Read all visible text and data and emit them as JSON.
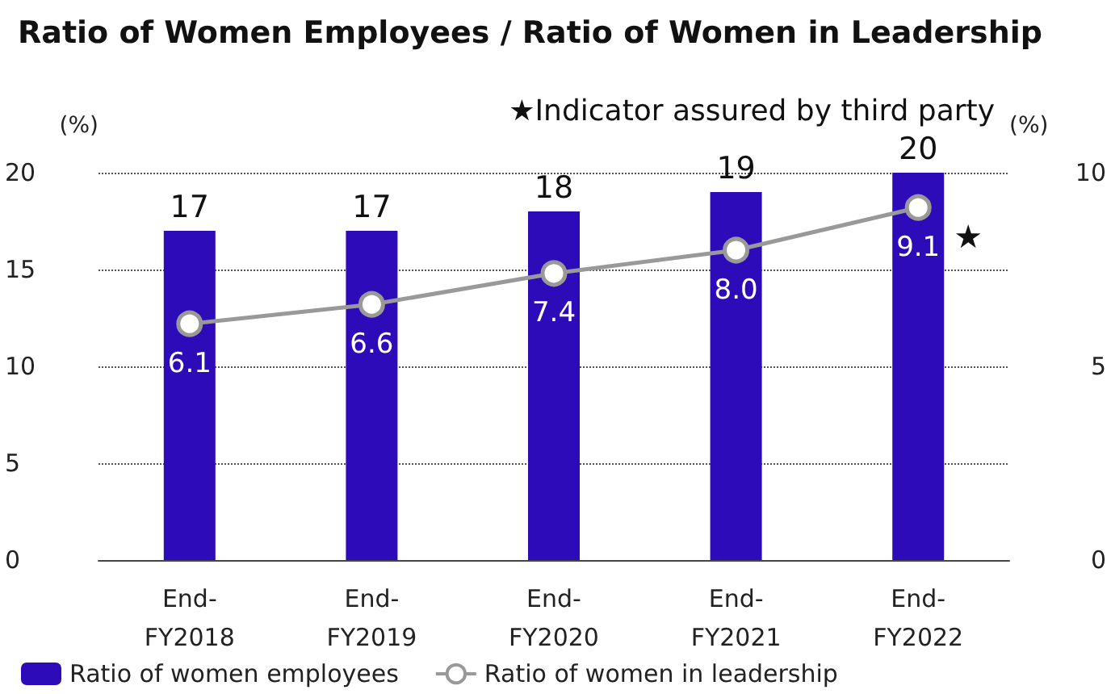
{
  "chart_data": {
    "type": "bar",
    "title": "Ratio of Women Employees / Ratio of Women in Leadership",
    "ylabel": "(%)",
    "y2label": "(%)",
    "categories": [
      "End-\nFY2018",
      "End-\nFY2019",
      "End-\nFY2020",
      "End-\nFY2021",
      "End-\nFY2022"
    ],
    "series": [
      {
        "name": "Ratio of women employees",
        "color": "#2e0bb8",
        "values": [
          17,
          17,
          18,
          19,
          20
        ]
      },
      {
        "name": "Ratio of women in leadership",
        "type": "line",
        "axis": "y2",
        "color": "#999999",
        "marker": "circle",
        "values": [
          6.1,
          6.6,
          7.4,
          8.0,
          9.1
        ],
        "value_labels": [
          "6.1",
          "6.6",
          "7.4",
          "8.0",
          "9.1"
        ]
      }
    ],
    "ylim": [
      0,
      20
    ],
    "yticks": [
      0,
      5,
      10,
      15,
      20
    ],
    "y2lim": [
      0,
      10
    ],
    "y2ticks": [
      0,
      5,
      10
    ],
    "data_labels": true,
    "grid": "y",
    "legend": "bottom left",
    "annotations": [
      "★Indicator assured by third party",
      "★"
    ]
  }
}
